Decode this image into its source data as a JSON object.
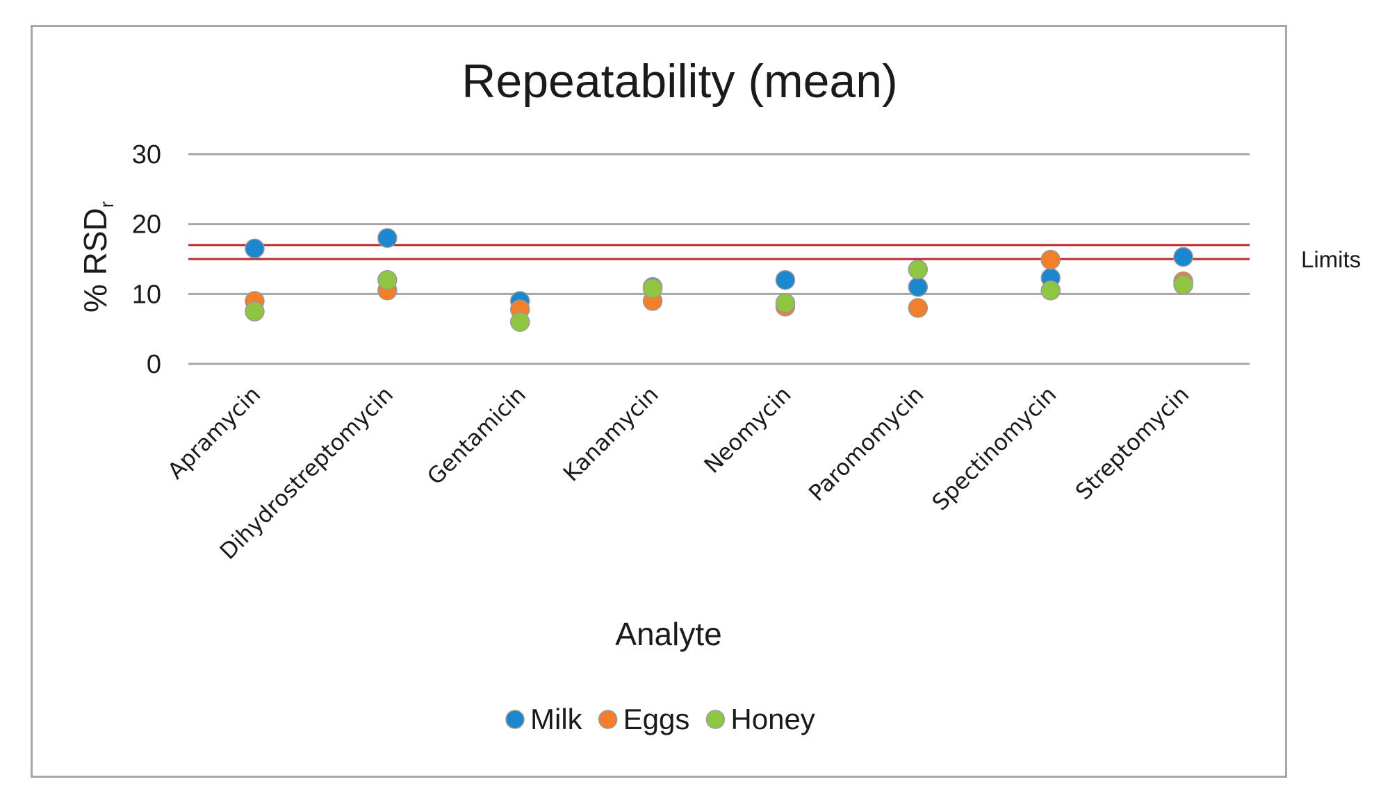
{
  "chart_data": {
    "type": "scatter",
    "title": "Repeatability (mean)",
    "xlabel": "Analyte",
    "ylabel": "% RSD",
    "ylabel_subscript": "r",
    "ylim": [
      0,
      30
    ],
    "yticks": [
      0,
      10,
      20,
      30
    ],
    "grid": true,
    "legend_position": "bottom",
    "categories": [
      "Apramycin",
      "Dihydrostreptomycin",
      "Gentamicin",
      "Kanamycin",
      "Neomycin",
      "Paromomycin",
      "Spectinomycin",
      "Streptomycin"
    ],
    "series": [
      {
        "name": "Milk",
        "color": "#1b87cf",
        "values": [
          16.5,
          18.0,
          9.0,
          11.0,
          12.0,
          11.0,
          12.3,
          15.3
        ]
      },
      {
        "name": "Eggs",
        "color": "#f37f2a",
        "values": [
          9.0,
          10.5,
          7.8,
          9.0,
          8.2,
          8.0,
          14.9,
          11.8
        ]
      },
      {
        "name": "Honey",
        "color": "#8fc641",
        "values": [
          7.5,
          12.0,
          6.0,
          10.8,
          8.7,
          13.5,
          10.5,
          11.3
        ]
      }
    ],
    "limit_lines": {
      "values": [
        17,
        15
      ],
      "color": "#c0282d",
      "label": "Limits"
    }
  }
}
